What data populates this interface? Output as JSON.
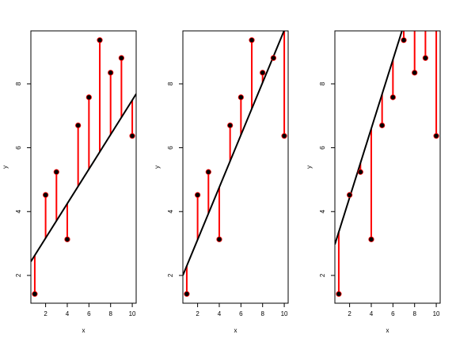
{
  "chart_data": [
    {
      "type": "scatter",
      "x": [
        1,
        2,
        3,
        4,
        5,
        6,
        7,
        8,
        9,
        10
      ],
      "y": [
        1.42,
        4.52,
        5.24,
        3.13,
        6.7,
        7.58,
        9.37,
        8.35,
        8.81,
        6.37
      ],
      "fit_line": {
        "slope": 0.54,
        "intercept": 2.09
      },
      "xlabel": "x",
      "ylabel": "y",
      "xlim": [
        0.64,
        10.36
      ],
      "ylim": [
        1.13,
        9.66
      ],
      "xticks": [
        2,
        4,
        6,
        8,
        10
      ],
      "yticks": [
        2,
        4,
        6,
        8
      ],
      "residual_color": "#ff0000",
      "line_color": "#000000"
    },
    {
      "type": "scatter",
      "x": [
        1,
        2,
        3,
        4,
        5,
        6,
        7,
        8,
        9,
        10
      ],
      "y": [
        1.42,
        4.52,
        5.24,
        3.13,
        6.7,
        7.58,
        9.37,
        8.35,
        8.81,
        6.37
      ],
      "fit_line": {
        "slope": 0.82,
        "intercept": 1.48
      },
      "xlabel": "x",
      "ylabel": "y",
      "xlim": [
        0.64,
        10.36
      ],
      "ylim": [
        1.13,
        9.66
      ],
      "xticks": [
        2,
        4,
        6,
        8,
        10
      ],
      "yticks": [
        2,
        4,
        6,
        8
      ],
      "residual_color": "#ff0000",
      "line_color": "#000000"
    },
    {
      "type": "scatter",
      "x": [
        1,
        2,
        3,
        4,
        5,
        6,
        7,
        8,
        9,
        10
      ],
      "y": [
        1.42,
        4.52,
        5.24,
        3.13,
        6.7,
        7.58,
        9.37,
        8.35,
        8.81,
        6.37
      ],
      "fit_line": {
        "slope": 1.08,
        "intercept": 2.28
      },
      "xlabel": "x",
      "ylabel": "y",
      "xlim": [
        0.64,
        10.36
      ],
      "ylim": [
        1.13,
        9.66
      ],
      "xticks": [
        2,
        4,
        6,
        8,
        10
      ],
      "yticks": [
        2,
        4,
        6,
        8
      ],
      "residual_color": "#ff0000",
      "line_color": "#000000"
    }
  ]
}
